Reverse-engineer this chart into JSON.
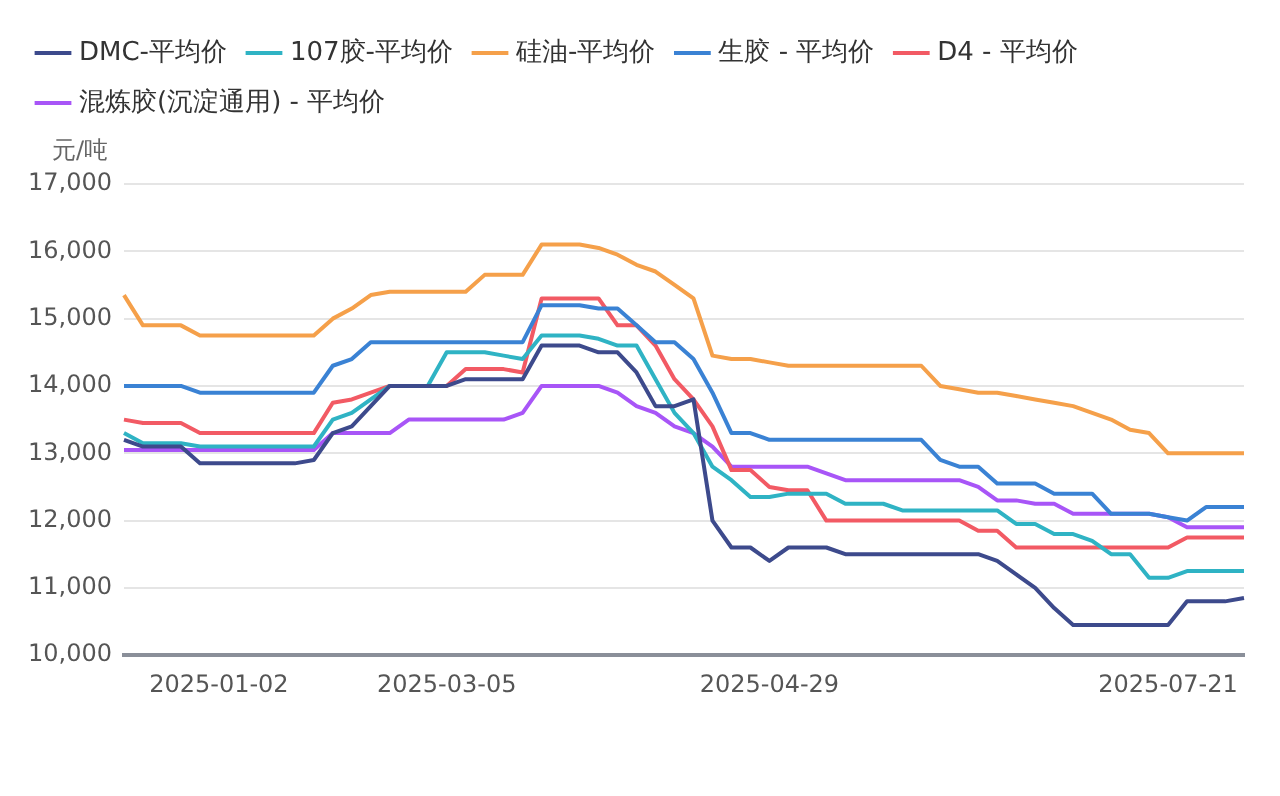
{
  "chart_data": {
    "type": "line",
    "ylabel": "元/吨",
    "categories": [
      null,
      null,
      null,
      null,
      null,
      "2025-01-02",
      null,
      null,
      null,
      null,
      null,
      null,
      null,
      null,
      null,
      null,
      null,
      "2025-03-05",
      null,
      null,
      null,
      null,
      null,
      null,
      null,
      null,
      null,
      null,
      null,
      null,
      null,
      null,
      null,
      null,
      "2025-04-29",
      null,
      null,
      null,
      null,
      null,
      null,
      null,
      null,
      null,
      null,
      null,
      null,
      null,
      null,
      null,
      null,
      null,
      null,
      null,
      null,
      "2025-07-21",
      null,
      null,
      null,
      null
    ],
    "ylim": [
      10000,
      17000
    ],
    "yticks": [
      {
        "value": 10000,
        "label": "10,000"
      },
      {
        "value": 11000,
        "label": "11,000"
      },
      {
        "value": 12000,
        "label": "12,000"
      },
      {
        "value": 13000,
        "label": "13,000"
      },
      {
        "value": 14000,
        "label": "14,000"
      },
      {
        "value": 15000,
        "label": "15,000"
      },
      {
        "value": 16000,
        "label": "16,000"
      },
      {
        "value": 17000,
        "label": "17,000"
      }
    ],
    "grid": "y",
    "legend": "top left",
    "marker": "none",
    "line_style": "solid",
    "series": [
      {
        "name": "DMC-平均价",
        "color": "#3d4a8c",
        "values": [
          13200,
          13100,
          13100,
          13100,
          12850,
          12850,
          12850,
          12850,
          12850,
          12850,
          12900,
          13300,
          13400,
          13700,
          14000,
          14000,
          14000,
          14000,
          14100,
          14100,
          14100,
          14100,
          14600,
          14600,
          14600,
          14500,
          14500,
          14200,
          13700,
          13700,
          13800,
          12000,
          11600,
          11600,
          11400,
          11600,
          11600,
          11600,
          11500,
          11500,
          11500,
          11500,
          11500,
          11500,
          11500,
          11500,
          11400,
          11200,
          11000,
          10700,
          10450,
          10450,
          10450,
          10450,
          10450,
          10450,
          10800,
          10800,
          10800,
          10850
        ]
      },
      {
        "name": "107胶-平均价",
        "color": "#2fb3c4",
        "values": [
          13300,
          13150,
          13150,
          13150,
          13100,
          13100,
          13100,
          13100,
          13100,
          13100,
          13100,
          13500,
          13600,
          13800,
          14000,
          14000,
          14000,
          14500,
          14500,
          14500,
          14450,
          14400,
          14750,
          14750,
          14750,
          14700,
          14600,
          14600,
          14100,
          13600,
          13300,
          12800,
          12600,
          12350,
          12350,
          12400,
          12400,
          12400,
          12250,
          12250,
          12250,
          12150,
          12150,
          12150,
          12150,
          12150,
          12150,
          11950,
          11950,
          11800,
          11800,
          11700,
          11500,
          11500,
          11150,
          11150,
          11250,
          11250,
          11250,
          11250
        ]
      },
      {
        "name": "硅油-平均价",
        "color": "#f5a04a",
        "values": [
          15350,
          14900,
          14900,
          14900,
          14750,
          14750,
          14750,
          14750,
          14750,
          14750,
          14750,
          15000,
          15150,
          15350,
          15400,
          15400,
          15400,
          15400,
          15400,
          15650,
          15650,
          15650,
          16100,
          16100,
          16100,
          16050,
          15950,
          15800,
          15700,
          15500,
          15300,
          14450,
          14400,
          14400,
          14350,
          14300,
          14300,
          14300,
          14300,
          14300,
          14300,
          14300,
          14300,
          14000,
          13950,
          13900,
          13900,
          13850,
          13800,
          13750,
          13700,
          13600,
          13500,
          13350,
          13300,
          13000,
          13000,
          13000,
          13000,
          13000
        ]
      },
      {
        "name": "生胶 - 平均价",
        "color": "#3a82d4",
        "values": [
          14000,
          14000,
          14000,
          14000,
          13900,
          13900,
          13900,
          13900,
          13900,
          13900,
          13900,
          14300,
          14400,
          14650,
          14650,
          14650,
          14650,
          14650,
          14650,
          14650,
          14650,
          14650,
          15200,
          15200,
          15200,
          15150,
          15150,
          14900,
          14650,
          14650,
          14400,
          13900,
          13300,
          13300,
          13200,
          13200,
          13200,
          13200,
          13200,
          13200,
          13200,
          13200,
          13200,
          12900,
          12800,
          12800,
          12550,
          12550,
          12550,
          12400,
          12400,
          12400,
          12100,
          12100,
          12100,
          12050,
          12000,
          12200,
          12200,
          12200
        ]
      },
      {
        "name": "D4 - 平均价",
        "color": "#f25a64",
        "values": [
          13500,
          13450,
          13450,
          13450,
          13300,
          13300,
          13300,
          13300,
          13300,
          13300,
          13300,
          13750,
          13800,
          13900,
          14000,
          14000,
          14000,
          14000,
          14250,
          14250,
          14250,
          14200,
          15300,
          15300,
          15300,
          15300,
          14900,
          14900,
          14600,
          14100,
          13800,
          13400,
          12750,
          12750,
          12500,
          12450,
          12450,
          12000,
          12000,
          12000,
          12000,
          12000,
          12000,
          12000,
          12000,
          11850,
          11850,
          11600,
          11600,
          11600,
          11600,
          11600,
          11600,
          11600,
          11600,
          11600,
          11750,
          11750,
          11750,
          11750
        ]
      },
      {
        "name": "混炼胶(沉淀通用) - 平均价",
        "color": "#a855f7",
        "values": [
          13050,
          13050,
          13050,
          13050,
          13050,
          13050,
          13050,
          13050,
          13050,
          13050,
          13050,
          13300,
          13300,
          13300,
          13300,
          13500,
          13500,
          13500,
          13500,
          13500,
          13500,
          13600,
          14000,
          14000,
          14000,
          14000,
          13900,
          13700,
          13600,
          13400,
          13300,
          13100,
          12800,
          12800,
          12800,
          12800,
          12800,
          12700,
          12600,
          12600,
          12600,
          12600,
          12600,
          12600,
          12600,
          12500,
          12300,
          12300,
          12250,
          12250,
          12100,
          12100,
          12100,
          12100,
          12100,
          12050,
          11900,
          11900,
          11900,
          11900
        ]
      }
    ]
  }
}
